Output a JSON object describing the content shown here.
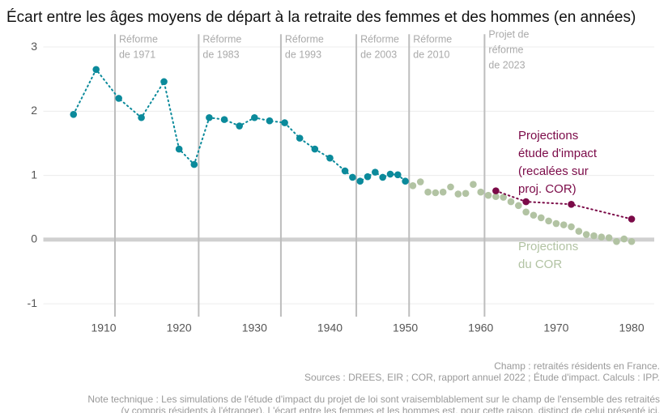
{
  "chart_data": {
    "type": "line",
    "title": "Écart entre les âges moyens de départ à la retraite des femmes et des hommes (en années)",
    "xlim": [
      1902,
      1983
    ],
    "xticks": [
      1910,
      1920,
      1930,
      1940,
      1950,
      1960,
      1970,
      1980
    ],
    "ylim": [
      -1.2,
      3.2
    ],
    "yticks": [
      -1,
      0,
      1,
      2,
      3
    ],
    "grid": true,
    "series": [
      {
        "color": "#0b8a9b",
        "line": "dotted",
        "x": [
          1906,
          1909,
          1912,
          1915,
          1918,
          1920,
          1922,
          1924,
          1926,
          1928,
          1930,
          1932,
          1934,
          1936,
          1938,
          1940,
          1942,
          1943,
          1944,
          1945,
          1946,
          1947,
          1948,
          1949,
          1950
        ],
        "values": [
          1.95,
          2.65,
          2.2,
          1.9,
          2.46,
          1.41,
          1.17,
          1.9,
          1.87,
          1.77,
          1.9,
          1.85,
          1.82,
          1.58,
          1.41,
          1.27,
          1.07,
          0.97,
          0.91,
          0.98,
          1.05,
          0.97,
          1.02,
          1.01,
          0.91
        ]
      },
      {
        "color": "#b2c3a3",
        "line": "none",
        "x": [
          1951,
          1952,
          1953,
          1954,
          1955,
          1956,
          1957,
          1958,
          1959,
          1960,
          1961,
          1962,
          1963,
          1964,
          1965,
          1966,
          1967,
          1968,
          1969,
          1970,
          1971,
          1972,
          1973,
          1974,
          1975,
          1976,
          1977,
          1978,
          1979,
          1980
        ],
        "values": [
          0.84,
          0.9,
          0.74,
          0.73,
          0.74,
          0.82,
          0.71,
          0.72,
          0.86,
          0.74,
          0.69,
          0.67,
          0.66,
          0.59,
          0.53,
          0.43,
          0.38,
          0.34,
          0.29,
          0.25,
          0.23,
          0.2,
          0.13,
          0.08,
          0.06,
          0.04,
          0.03,
          -0.03,
          0.01,
          -0.03
        ]
      },
      {
        "color": "#7b0a48",
        "line": "dotted",
        "x": [
          1962,
          1966,
          1972,
          1980
        ],
        "values": [
          0.76,
          0.59,
          0.55,
          0.32
        ]
      }
    ],
    "reforms": [
      {
        "x": 1911.5,
        "label": [
          "Réforme",
          "de 1971"
        ]
      },
      {
        "x": 1922.6,
        "label": [
          "Réforme",
          "de 1983"
        ]
      },
      {
        "x": 1933.5,
        "label": [
          "Réforme",
          "de 1993"
        ]
      },
      {
        "x": 1943.5,
        "label": [
          "Réforme",
          "de 2003"
        ]
      },
      {
        "x": 1950.5,
        "label": [
          "Réforme",
          "de 2010"
        ]
      },
      {
        "x": 1960.5,
        "label": [
          "Projet de",
          "réforme",
          "de 2023"
        ]
      }
    ],
    "annotations": [
      {
        "color": "#7b0a48",
        "lines": [
          "Projections",
          "étude d'impact",
          "(recalées sur",
          "proj. COR)"
        ]
      },
      {
        "color": "#b2c3a3",
        "lines": [
          "Projections",
          "du COR"
        ]
      }
    ],
    "footer": [
      "Champ : retraités résidents en France.",
      "Sources : DREES, EIR ; COR, rapport annuel 2022 ; Étude d'impact. Calculs : IPP."
    ],
    "note": [
      "Note technique : Les simulations de l'étude d'impact du projet de loi sont vraisemblablement sur le champ de l'ensemble des retraités",
      "(y compris résidents à l'étranger). L'écart entre les femmes et les hommes est, pour cette raison, distinct de celui présenté ici."
    ]
  }
}
